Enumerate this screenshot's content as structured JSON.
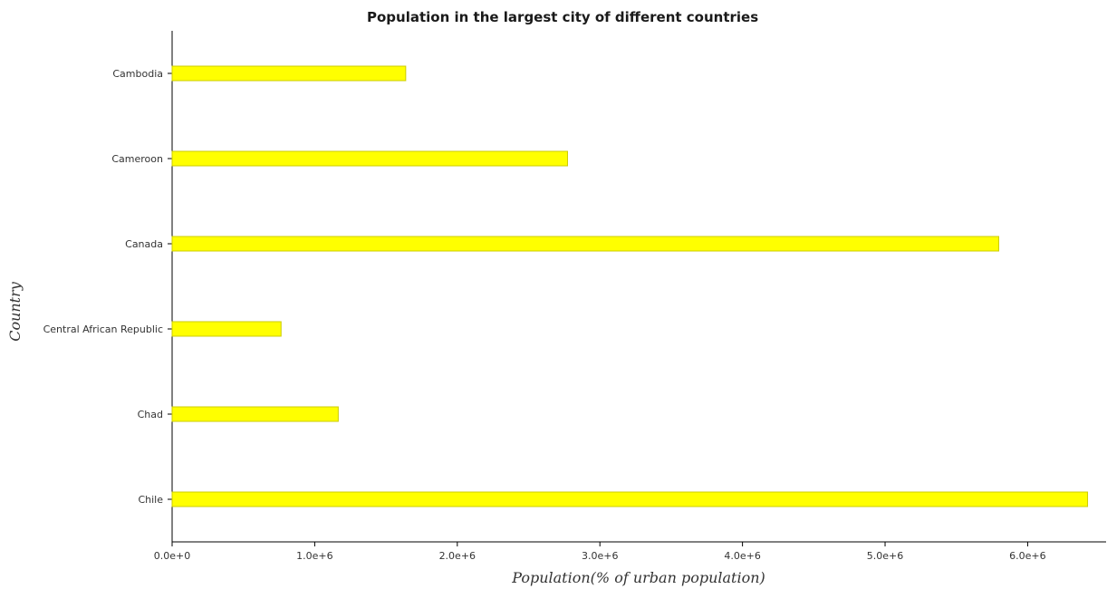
{
  "chart_data": {
    "type": "bar",
    "orientation": "horizontal",
    "title": "Population in the largest city of different countries",
    "xlabel": "Population(% of urban population)",
    "ylabel": "Country",
    "categories": [
      "Cambodia",
      "Cameroon",
      "Canada",
      "Central African Republic",
      "Chad",
      "Chile"
    ],
    "values": [
      1638000,
      2773000,
      5797000,
      764000,
      1165000,
      6420000
    ],
    "xlim": [
      0,
      6550000
    ],
    "xticks": [
      0,
      1000000,
      2000000,
      3000000,
      4000000,
      5000000,
      6000000
    ],
    "xtick_labels": [
      "0.0e+0",
      "1.0e+6",
      "2.0e+6",
      "3.0e+6",
      "4.0e+6",
      "5.0e+6",
      "6.0e+6"
    ],
    "grid": false,
    "legend": "none",
    "colors": {
      "bar_fill": "#ffff00",
      "bar_stroke": "#cccc00"
    }
  }
}
